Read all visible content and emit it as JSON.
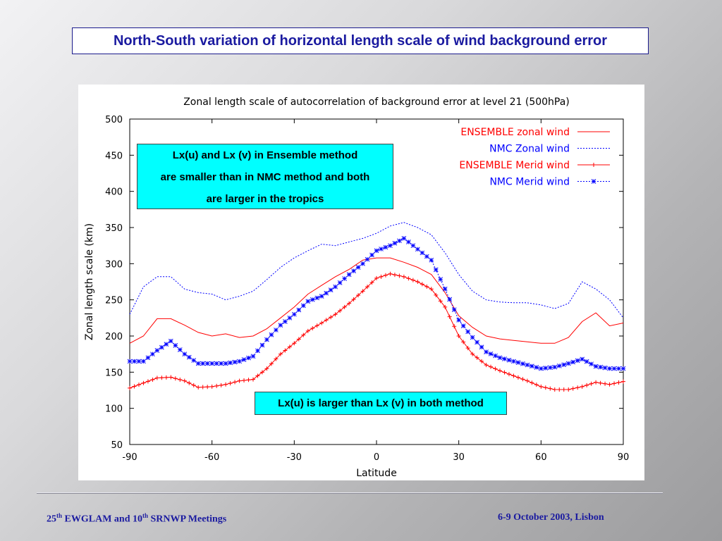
{
  "slide": {
    "title": "North-South variation of horizontal length scale of wind background error",
    "callout_top": [
      "Lx(u) and Lx (v) in Ensemble method",
      "are smaller than in NMC method and both",
      "are larger in the tropics"
    ],
    "callout_bottom": "Lx(u) is larger than Lx (v) in both method",
    "footer_left": {
      "p1": "25",
      "s1": "th",
      "p2": " EWGLAM and 10",
      "s2": "th",
      "p3": " SRNWP Meetings"
    },
    "footer_right": "6-9 October 2003, Lisbon"
  },
  "chart_data": {
    "type": "line",
    "title": "Zonal length scale of autocorrelation of background error at level 21 (500hPa)",
    "xlabel": "Latitude",
    "ylabel": "Zonal length scale (km)",
    "xlim": [
      -90,
      90
    ],
    "ylim": [
      50,
      500
    ],
    "xticks": [
      -90,
      -60,
      -30,
      0,
      30,
      60,
      90
    ],
    "yticks": [
      50,
      100,
      150,
      200,
      250,
      300,
      350,
      400,
      450,
      500
    ],
    "grid": false,
    "legend_position": "top-right",
    "series": [
      {
        "name": "ENSEMBLE zonal wind",
        "color": "#ff0000",
        "style": "solid",
        "marker": "none",
        "x": [
          -90,
          -85,
          -80,
          -75,
          -70,
          -65,
          -60,
          -55,
          -50,
          -45,
          -40,
          -35,
          -30,
          -25,
          -20,
          -15,
          -10,
          -5,
          0,
          5,
          10,
          15,
          20,
          25,
          30,
          35,
          40,
          45,
          50,
          55,
          60,
          65,
          70,
          75,
          80,
          85,
          90
        ],
        "y": [
          190,
          200,
          224,
          224,
          215,
          205,
          200,
          203,
          198,
          200,
          210,
          225,
          240,
          258,
          270,
          282,
          292,
          305,
          308,
          308,
          302,
          295,
          285,
          260,
          228,
          212,
          200,
          196,
          194,
          192,
          190,
          190,
          198,
          220,
          232,
          214,
          218
        ]
      },
      {
        "name": "NMC Zonal wind",
        "color": "#0000ff",
        "style": "dotted",
        "marker": "none",
        "x": [
          -90,
          -85,
          -80,
          -75,
          -70,
          -65,
          -60,
          -55,
          -50,
          -45,
          -40,
          -35,
          -30,
          -25,
          -20,
          -15,
          -10,
          -5,
          0,
          5,
          10,
          15,
          20,
          25,
          30,
          35,
          40,
          45,
          50,
          55,
          60,
          65,
          70,
          75,
          80,
          85,
          90
        ],
        "y": [
          230,
          268,
          282,
          282,
          265,
          260,
          258,
          250,
          255,
          262,
          278,
          295,
          308,
          318,
          327,
          325,
          330,
          335,
          342,
          352,
          357,
          350,
          340,
          315,
          285,
          262,
          250,
          247,
          246,
          246,
          243,
          238,
          245,
          275,
          265,
          250,
          225
        ]
      },
      {
        "name": "ENSEMBLE Merid wind",
        "color": "#ff0000",
        "style": "solid",
        "marker": "plus",
        "x": [
          -90,
          -85,
          -80,
          -75,
          -70,
          -65,
          -60,
          -55,
          -50,
          -45,
          -40,
          -35,
          -30,
          -25,
          -20,
          -15,
          -10,
          -5,
          0,
          5,
          10,
          15,
          20,
          25,
          30,
          35,
          40,
          45,
          50,
          55,
          60,
          65,
          70,
          75,
          80,
          85,
          90
        ],
        "y": [
          128,
          135,
          142,
          143,
          138,
          129,
          130,
          133,
          138,
          140,
          155,
          175,
          190,
          207,
          218,
          230,
          245,
          262,
          280,
          286,
          282,
          275,
          265,
          240,
          200,
          175,
          160,
          152,
          145,
          138,
          130,
          126,
          126,
          130,
          136,
          133,
          137
        ]
      },
      {
        "name": "NMC Merid wind",
        "color": "#0000ff",
        "style": "dotted",
        "marker": "star",
        "x": [
          -90,
          -85,
          -80,
          -75,
          -70,
          -65,
          -60,
          -55,
          -50,
          -45,
          -40,
          -35,
          -30,
          -25,
          -20,
          -15,
          -10,
          -5,
          0,
          5,
          10,
          15,
          20,
          25,
          30,
          35,
          40,
          45,
          50,
          55,
          60,
          65,
          70,
          75,
          80,
          85,
          90
        ],
        "y": [
          165,
          165,
          180,
          193,
          175,
          162,
          162,
          162,
          165,
          172,
          195,
          215,
          230,
          248,
          255,
          268,
          285,
          300,
          318,
          325,
          335,
          320,
          305,
          265,
          222,
          198,
          178,
          170,
          165,
          160,
          155,
          157,
          162,
          168,
          158,
          155,
          155
        ]
      }
    ]
  },
  "colors": {
    "title_text": "#1a1aa0",
    "callout_bg": "#00ffff",
    "series_red": "#ff0000",
    "series_blue": "#0000ff"
  }
}
